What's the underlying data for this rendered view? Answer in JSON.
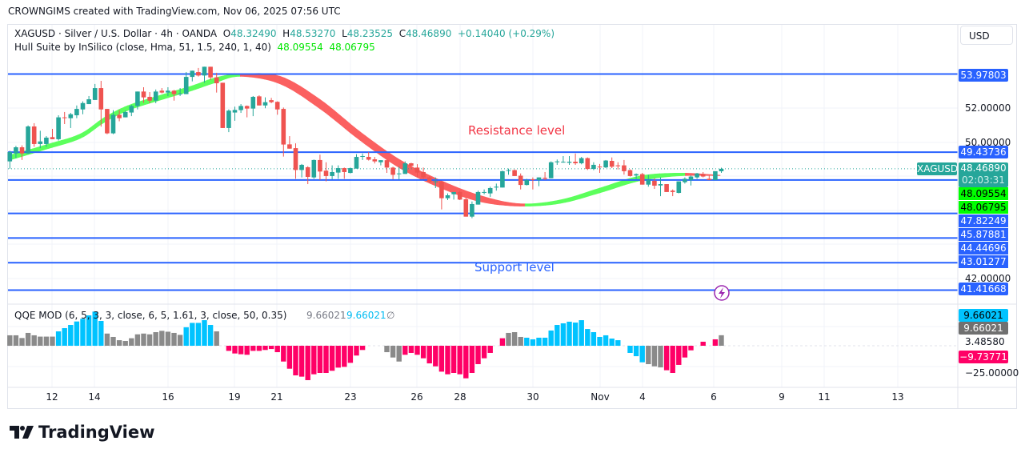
{
  "credit": "CROWNGIMS created with TradingView.com, Nov 06, 2025 07:56 UTC",
  "legend": {
    "symbol": "XAGUSD · Silver / U.S. Dollar · 4h · OANDA",
    "o_label": "O",
    "o": "48.32490",
    "h_label": "H",
    "h": "48.53270",
    "l_label": "L",
    "l": "48.23525",
    "c_label": "C",
    "c": "48.46890",
    "change": "+0.14040 (+0.29%)",
    "hull_name": "Hull Suite by InSilico (close, Hma, 51, 1.5, 240, 1, 40)",
    "hull_v1": "48.09554",
    "hull_v2": "48.06795"
  },
  "qqe_legend": {
    "name": "QQE MOD (6, 5, 3, 3, close, 6, 5, 1.61, 3, close, 50, 0.35)",
    "v1": "9.66021",
    "v2": "9.66021",
    "na": "∅"
  },
  "currency_button": "USD",
  "annotations": {
    "resistance": "Resistance level",
    "support": "Support level"
  },
  "price_axis": {
    "ticks": [
      "52.00000",
      "50.00000",
      "42.00000"
    ]
  },
  "horizontal_levels": [
    "53.97803",
    "49.43736",
    "47.82249",
    "45.87881",
    "44.44696",
    "43.01277",
    "41.41668"
  ],
  "level_values": [
    53.97803,
    49.43736,
    47.82249,
    45.87881,
    44.44696,
    43.01277,
    41.41668
  ],
  "last_price": {
    "symbol": "XAGUSD",
    "price": "48.46890",
    "countdown": "02:03:31",
    "value": 48.4689
  },
  "qqe_axis": {
    "blue": "9.66021",
    "gray": "9.66021",
    "tick1": "3.48580",
    "pink": "−9.73771",
    "tick2": "−25.00000"
  },
  "time_axis": [
    "12",
    "14",
    "16",
    "19",
    "21",
    "23",
    "26",
    "28",
    "30",
    "Nov",
    "4",
    "6",
    "9",
    "11",
    "13"
  ],
  "logo": "TradingView",
  "colors": {
    "up": "#26a69a",
    "down": "#ef5350",
    "level": "#2962ff",
    "hull_up": "#5cff5c",
    "hull_down": "#fb6060",
    "qqe_gray": "#8a8a8a",
    "qqe_blue": "#00c3ff",
    "qqe_pink": "#ff0066",
    "resistance": "#f23645"
  },
  "chart_data": {
    "type": "candlestick",
    "symbol": "XAGUSD",
    "interval": "4h",
    "ohlc": [
      [
        48.9,
        49.52,
        48.47,
        49.44
      ],
      [
        49.36,
        49.8,
        49.09,
        49.72
      ],
      [
        49.72,
        49.83,
        48.98,
        49.36
      ],
      [
        49.36,
        50.99,
        49.33,
        50.93
      ],
      [
        50.93,
        51.12,
        49.75,
        49.91
      ],
      [
        49.91,
        50.68,
        49.67,
        50.06
      ],
      [
        49.91,
        50.37,
        49.75,
        50.28
      ],
      [
        50.31,
        50.79,
        50.19,
        50.19
      ],
      [
        50.19,
        51.58,
        50.11,
        51.46
      ],
      [
        51.46,
        51.77,
        51.07,
        51.43
      ],
      [
        51.41,
        51.72,
        50.84,
        51.64
      ],
      [
        51.58,
        52.15,
        51.41,
        51.95
      ],
      [
        51.92,
        52.39,
        51.64,
        52.29
      ],
      [
        52.23,
        52.7,
        52.23,
        52.51
      ],
      [
        52.47,
        53.4,
        52.47,
        53.16
      ],
      [
        53.16,
        53.58,
        50.92,
        51.92
      ],
      [
        51.95,
        51.95,
        50.48,
        50.53
      ],
      [
        50.53,
        51.88,
        50.48,
        51.61
      ],
      [
        51.61,
        51.88,
        51.23,
        51.41
      ],
      [
        51.46,
        51.85,
        51.46,
        51.77
      ],
      [
        51.74,
        52.19,
        51.53,
        52.12
      ],
      [
        52.12,
        52.96,
        51.92,
        52.96
      ],
      [
        52.96,
        53.21,
        52.31,
        52.62
      ],
      [
        52.65,
        52.93,
        52.28,
        52.43
      ],
      [
        52.43,
        53.08,
        52.28,
        52.96
      ],
      [
        53.01,
        53.16,
        52.85,
        52.9
      ],
      [
        52.9,
        53.21,
        52.7,
        53.01
      ],
      [
        53.01,
        53.05,
        52.43,
        52.81
      ],
      [
        52.81,
        53.16,
        52.7,
        52.84
      ],
      [
        52.81,
        54.09,
        52.81,
        53.81
      ],
      [
        53.81,
        54.17,
        53.55,
        54.17
      ],
      [
        54.09,
        54.33,
        53.83,
        53.89
      ],
      [
        53.89,
        54.4,
        53.47,
        54.4
      ],
      [
        54.4,
        54.4,
        53.63,
        53.78
      ],
      [
        53.78,
        54.05,
        52.9,
        53.44
      ],
      [
        53.47,
        53.47,
        50.84,
        50.84
      ],
      [
        50.84,
        51.92,
        50.6,
        51.85
      ],
      [
        51.74,
        52.08,
        51.26,
        51.89
      ],
      [
        51.88,
        52.23,
        51.72,
        52.12
      ],
      [
        52.12,
        52.15,
        51.46,
        51.97
      ],
      [
        51.97,
        52.7,
        51.53,
        52.65
      ],
      [
        52.68,
        52.74,
        52.15,
        52.15
      ],
      [
        52.15,
        52.62,
        51.99,
        52.34
      ],
      [
        52.46,
        52.59,
        52.28,
        52.34
      ],
      [
        52.36,
        52.39,
        51.61,
        51.92
      ],
      [
        51.95,
        52.03,
        49.18,
        49.88
      ],
      [
        49.89,
        50.37,
        49.64,
        49.64
      ],
      [
        49.67,
        49.95,
        47.89,
        48.4
      ],
      [
        48.4,
        48.75,
        47.97,
        48.7
      ],
      [
        48.56,
        48.62,
        47.58,
        48.0
      ],
      [
        47.97,
        49.01,
        47.89,
        48.98
      ],
      [
        48.98,
        49.29,
        47.81,
        48.31
      ],
      [
        48.36,
        48.85,
        47.74,
        48.05
      ],
      [
        48.05,
        48.67,
        47.86,
        48.28
      ],
      [
        48.25,
        48.67,
        47.89,
        48.51
      ],
      [
        48.51,
        48.54,
        47.89,
        48.28
      ],
      [
        48.23,
        48.54,
        48.2,
        48.51
      ],
      [
        48.48,
        49.32,
        48.48,
        49.16
      ],
      [
        49.18,
        49.36,
        48.98,
        49.21
      ],
      [
        49.16,
        49.44,
        48.95,
        49.0
      ],
      [
        49.02,
        49.16,
        48.78,
        48.9
      ],
      [
        48.85,
        48.97,
        48.67,
        48.97
      ],
      [
        48.97,
        49.0,
        48.23,
        48.54
      ],
      [
        48.54,
        48.59,
        47.86,
        48.12
      ],
      [
        48.17,
        48.59,
        47.86,
        48.2
      ],
      [
        48.17,
        48.9,
        48.17,
        48.79
      ],
      [
        48.79,
        48.82,
        48.48,
        48.64
      ],
      [
        48.54,
        48.74,
        47.97,
        48.25
      ],
      [
        48.28,
        48.54,
        47.89,
        47.97
      ],
      [
        47.97,
        48.05,
        47.66,
        47.71
      ],
      [
        47.71,
        47.97,
        47.35,
        47.74
      ],
      [
        47.71,
        47.74,
        46.11,
        46.76
      ],
      [
        46.76,
        47.04,
        46.65,
        46.93
      ],
      [
        46.99,
        47.12,
        46.68,
        47.12
      ],
      [
        47.12,
        47.2,
        46.65,
        46.68
      ],
      [
        46.7,
        46.81,
        45.69,
        45.69
      ],
      [
        45.69,
        46.57,
        45.6,
        46.42
      ],
      [
        46.39,
        47.2,
        46.39,
        47.12
      ],
      [
        47.08,
        47.27,
        46.99,
        47.12
      ],
      [
        47.04,
        47.43,
        46.84,
        47.35
      ],
      [
        47.38,
        47.61,
        47.2,
        47.43
      ],
      [
        47.38,
        48.36,
        47.38,
        48.33
      ],
      [
        48.36,
        48.48,
        48.12,
        48.39
      ],
      [
        48.39,
        48.43,
        48.05,
        48.05
      ],
      [
        48.07,
        48.2,
        47.27,
        47.53
      ],
      [
        47.53,
        47.89,
        47.5,
        47.81
      ],
      [
        47.86,
        47.97,
        47.27,
        47.83
      ],
      [
        47.81,
        47.97,
        47.46,
        47.97
      ],
      [
        47.95,
        48.28,
        47.81,
        47.89
      ],
      [
        47.92,
        48.9,
        47.92,
        48.85
      ],
      [
        48.85,
        49.01,
        48.7,
        48.9
      ],
      [
        48.85,
        49.21,
        48.82,
        48.88
      ],
      [
        48.82,
        49.21,
        48.7,
        48.88
      ],
      [
        48.88,
        49.36,
        48.7,
        48.79
      ],
      [
        48.79,
        49.16,
        48.73,
        49.09
      ],
      [
        49.09,
        49.13,
        48.4,
        48.46
      ],
      [
        48.46,
        48.85,
        48.39,
        48.7
      ],
      [
        48.6,
        48.75,
        48.23,
        48.55
      ],
      [
        48.55,
        48.98,
        48.51,
        48.95
      ],
      [
        48.93,
        49.13,
        48.51,
        48.59
      ],
      [
        48.67,
        48.85,
        48.43,
        48.62
      ],
      [
        48.67,
        48.98,
        48.13,
        48.33
      ],
      [
        48.39,
        48.43,
        48.02,
        48.05
      ],
      [
        48.08,
        48.2,
        47.89,
        48.16
      ],
      [
        48.16,
        48.23,
        47.55,
        47.55
      ],
      [
        47.55,
        48.12,
        47.43,
        47.81
      ],
      [
        47.77,
        47.92,
        47.3,
        47.49
      ],
      [
        47.5,
        47.97,
        46.88,
        47.58
      ],
      [
        47.58,
        47.58,
        47.12,
        47.12
      ],
      [
        47.2,
        47.27,
        46.88,
        47.12
      ],
      [
        47.07,
        47.74,
        47.04,
        47.74
      ],
      [
        47.69,
        47.97,
        47.61,
        47.89
      ],
      [
        47.81,
        48.08,
        47.5,
        48.02
      ],
      [
        47.97,
        48.23,
        47.89,
        48.2
      ],
      [
        48.17,
        48.28,
        47.97,
        48.02
      ],
      [
        47.89,
        48.12,
        47.81,
        47.81
      ],
      [
        47.81,
        48.33,
        47.81,
        48.33
      ],
      [
        48.3249,
        48.5327,
        48.23525,
        48.4689
      ]
    ],
    "hull_band": [
      [
        0,
        49.26,
        48.98
      ],
      [
        6.3,
        49.9,
        49.64
      ],
      [
        11.6,
        50.5,
        50.24
      ],
      [
        15.5,
        51.44,
        51.16
      ],
      [
        19.4,
        52.14,
        51.86
      ],
      [
        24.7,
        52.74,
        52.46
      ],
      [
        30,
        53.3,
        53.02
      ],
      [
        33.9,
        53.77,
        53.49
      ],
      [
        37.9,
        53.98,
        53.84
      ],
      [
        44.4,
        53.85,
        53.41
      ],
      [
        51,
        52.5,
        51.96
      ],
      [
        57.6,
        50.62,
        50.12
      ],
      [
        64.2,
        48.98,
        48.5
      ],
      [
        70.8,
        47.8,
        47.36
      ],
      [
        77.3,
        46.92,
        46.56
      ],
      [
        83.9,
        46.44,
        46.3
      ],
      [
        90.5,
        46.66,
        46.46
      ],
      [
        97,
        47.35,
        47.07
      ],
      [
        103.6,
        48.05,
        47.77
      ],
      [
        110.2,
        48.22,
        48.06
      ],
      [
        116.8,
        48.09554,
        48.06795
      ]
    ],
    "qqe_values": [
      9.6,
      9.6,
      7.1,
      11.8,
      9.6,
      8.4,
      8.4,
      8.4,
      13.2,
      16.2,
      19.1,
      22.3,
      24.8,
      27.9,
      31.4,
      22.8,
      11.2,
      8.1,
      5.1,
      4.4,
      6.9,
      10.5,
      11.2,
      10.5,
      12.5,
      13.7,
      12.9,
      11.8,
      10,
      17,
      21,
      21,
      23.5,
      19.1,
      13.2,
      0,
      -4.7,
      -7.1,
      -7.8,
      -8.3,
      -4.7,
      -4.7,
      -3.9,
      -3,
      -5.9,
      -14.5,
      -21.1,
      -27.2,
      -28.4,
      -31.6,
      -26.2,
      -25,
      -25,
      -23,
      -20.1,
      -19.4,
      -15.7,
      -9,
      -3.9,
      0,
      0,
      0,
      -5.9,
      -10.8,
      -14.5,
      -8.3,
      -6.6,
      -8.3,
      -11.5,
      -16.2,
      -18.9,
      -23.8,
      -26.2,
      -25,
      -26.2,
      -29.9,
      -25,
      -16.9,
      -11.5,
      -6.6,
      0,
      6.9,
      11.8,
      12.5,
      8.1,
      7.4,
      5.9,
      7.4,
      7.4,
      14,
      19.1,
      20.6,
      22.1,
      21.3,
      23.5,
      15.4,
      12.5,
      8.1,
      9.6,
      6.6,
      5.1,
      0,
      -6.6,
      -9.6,
      -15.2,
      -16.9,
      -18.9,
      -19.9,
      -22.5,
      -25,
      -17.6,
      -10.8,
      -4.2,
      0,
      3.7,
      0,
      5.9,
      9.66021
    ],
    "qqe_colors": "ggggggggbbbbbbbbgggggggggggggbbbbbggpppppppppppppppppppppppppggggpppppppppppppppppgggbbbbbbbbbbbbbbbbbbbbgggpppppppppgbgbbb"
  }
}
